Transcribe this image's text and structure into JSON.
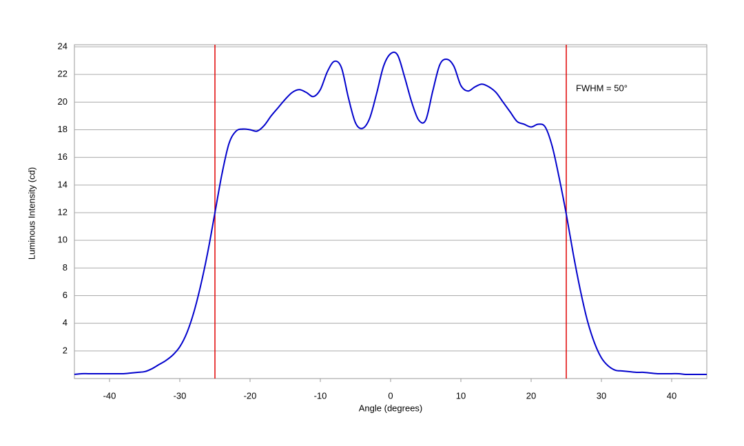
{
  "chart_data": {
    "type": "line",
    "xlabel": "Angle (degrees)",
    "ylabel": "Luminous Intensity (cd)",
    "x": [
      -45,
      -44,
      -43,
      -42,
      -41,
      -40,
      -39,
      -38,
      -37,
      -36,
      -35,
      -34,
      -33,
      -32,
      -31,
      -30,
      -29,
      -28,
      -27,
      -26,
      -25,
      -24,
      -23,
      -22,
      -21,
      -20,
      -19,
      -18,
      -17,
      -16,
      -15,
      -14,
      -13,
      -12,
      -11,
      -10,
      -9,
      -8,
      -7,
      -6,
      -5,
      -4,
      -3,
      -2,
      -1,
      0,
      1,
      2,
      3,
      4,
      5,
      6,
      7,
      8,
      9,
      10,
      11,
      12,
      13,
      14,
      15,
      16,
      17,
      18,
      19,
      20,
      21,
      22,
      23,
      24,
      25,
      26,
      27,
      28,
      29,
      30,
      31,
      32,
      33,
      34,
      35,
      36,
      37,
      38,
      39,
      40,
      41,
      42,
      43,
      44,
      45
    ],
    "series": [
      {
        "name": "Luminous Intensity",
        "color": "#0000cc",
        "values": [
          0.3,
          0.35,
          0.35,
          0.35,
          0.35,
          0.35,
          0.35,
          0.35,
          0.4,
          0.45,
          0.5,
          0.7,
          1.0,
          1.3,
          1.7,
          2.3,
          3.3,
          4.8,
          6.8,
          9.2,
          12,
          14.8,
          17,
          17.9,
          18.05,
          18,
          17.9,
          18.3,
          19,
          19.6,
          20.2,
          20.7,
          20.9,
          20.7,
          20.4,
          20.9,
          22.2,
          22.95,
          22.5,
          20.3,
          18.5,
          18.1,
          18.8,
          20.6,
          22.6,
          23.5,
          23.4,
          21.8,
          20.0,
          18.7,
          18.7,
          20.8,
          22.7,
          23.1,
          22.6,
          21.2,
          20.8,
          21.1,
          21.3,
          21.1,
          20.7,
          20,
          19.3,
          18.6,
          18.4,
          18.2,
          18.4,
          18.2,
          16.8,
          14.5,
          11.9,
          9,
          6.4,
          4.2,
          2.6,
          1.5,
          0.9,
          0.6,
          0.55,
          0.5,
          0.45,
          0.45,
          0.4,
          0.35,
          0.35,
          0.35,
          0.35,
          0.3,
          0.3,
          0.3,
          0.3
        ]
      }
    ],
    "vlines": [
      -25,
      25
    ],
    "vline_color": "#e00000",
    "annotation": "FWHM = 50°",
    "xlim": [
      -45,
      45
    ],
    "xticks": [
      -40,
      -30,
      -20,
      -10,
      0,
      10,
      20,
      30,
      40
    ],
    "ylim": [
      0,
      24
    ],
    "yticks": [
      2,
      4,
      6,
      8,
      10,
      12,
      14,
      16,
      18,
      20,
      22,
      24
    ],
    "grid": true
  }
}
